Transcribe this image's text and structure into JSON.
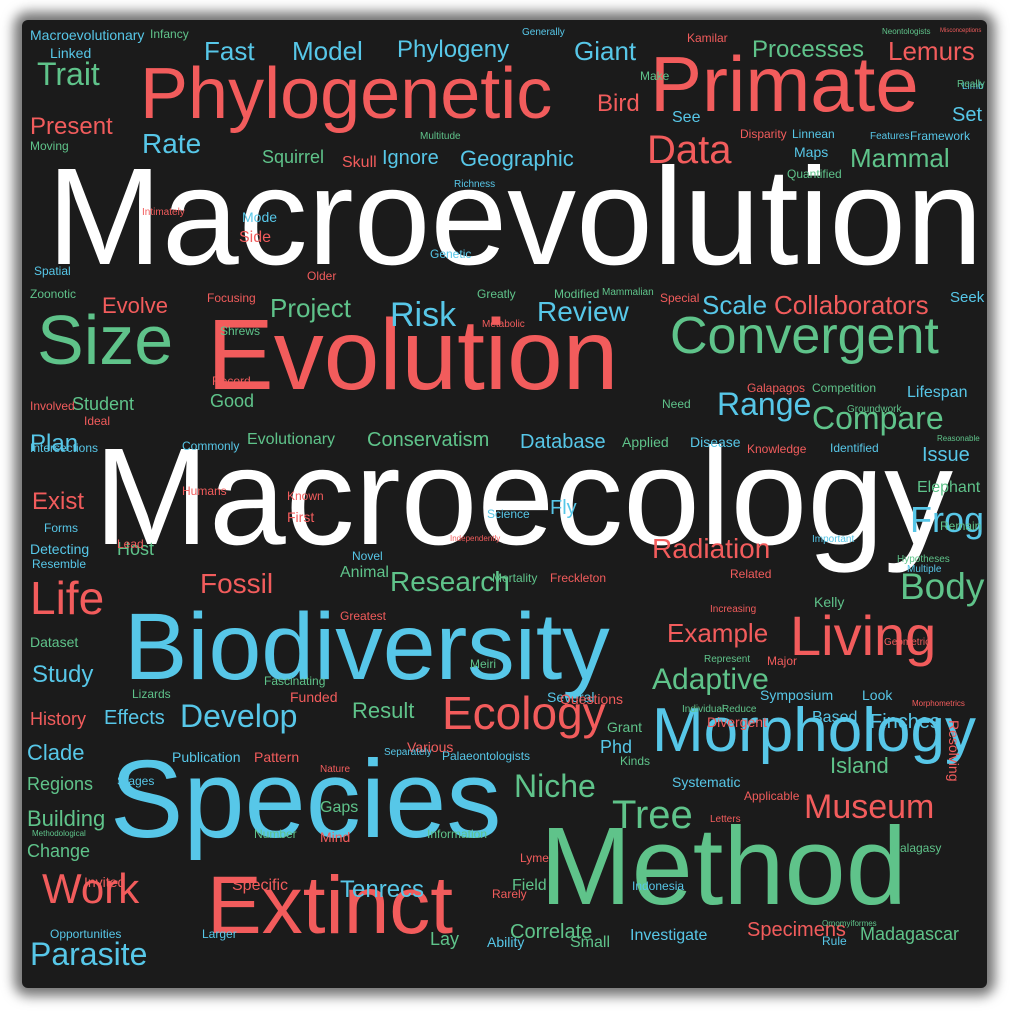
{
  "colors": {
    "background": "#1b1b1b",
    "red": "#f25c5c",
    "blue": "#57c7e8",
    "green": "#5fc38a",
    "white": "#ffffff"
  },
  "words": [
    {
      "t": "Macroevolution",
      "c": "white",
      "s": 138
    },
    {
      "t": "Macroecology",
      "c": "white",
      "s": 138
    },
    {
      "t": "Evolution",
      "c": "red",
      "s": 100
    },
    {
      "t": "Biodiversity",
      "c": "blue",
      "s": 95
    },
    {
      "t": "Species",
      "c": "blue",
      "s": 110
    },
    {
      "t": "Method",
      "c": "green",
      "s": 110
    },
    {
      "t": "Extinct",
      "c": "red",
      "s": 82
    },
    {
      "t": "Phylogenetic",
      "c": "red",
      "s": 72
    },
    {
      "t": "Primate",
      "c": "red",
      "s": 78
    },
    {
      "t": "Morphology",
      "c": "blue",
      "s": 62
    },
    {
      "t": "Size",
      "c": "green",
      "s": 70
    },
    {
      "t": "Convergent",
      "c": "green",
      "s": 52
    },
    {
      "t": "Living",
      "c": "red",
      "s": 56
    },
    {
      "t": "Ecology",
      "c": "red",
      "s": 46
    },
    {
      "t": "Life",
      "c": "red",
      "s": 46
    },
    {
      "t": "Work",
      "c": "red",
      "s": 42
    },
    {
      "t": "Museum",
      "c": "red",
      "s": 34
    },
    {
      "t": "Data",
      "c": "red",
      "s": 40
    },
    {
      "t": "Body",
      "c": "green",
      "s": 38
    },
    {
      "t": "Tree",
      "c": "green",
      "s": 40
    },
    {
      "t": "Frog",
      "c": "blue",
      "s": 36
    },
    {
      "t": "Parasite",
      "c": "blue",
      "s": 32
    },
    {
      "t": "Range",
      "c": "blue",
      "s": 32
    },
    {
      "t": "Compare",
      "c": "green",
      "s": 32
    },
    {
      "t": "Risk",
      "c": "blue",
      "s": 34
    },
    {
      "t": "Develop",
      "c": "blue",
      "s": 32
    },
    {
      "t": "Trait",
      "c": "green",
      "s": 32
    },
    {
      "t": "Rate",
      "c": "blue",
      "s": 28
    },
    {
      "t": "Niche",
      "c": "green",
      "s": 32
    },
    {
      "t": "Adaptive",
      "c": "green",
      "s": 30
    },
    {
      "t": "Radiation",
      "c": "red",
      "s": 28
    },
    {
      "t": "Research",
      "c": "green",
      "s": 28
    },
    {
      "t": "Fossil",
      "c": "red",
      "s": 28
    },
    {
      "t": "Review",
      "c": "blue",
      "s": 28
    },
    {
      "t": "Project",
      "c": "green",
      "s": 26
    },
    {
      "t": "Scale",
      "c": "blue",
      "s": 26
    },
    {
      "t": "Collaborators",
      "c": "red",
      "s": 26
    },
    {
      "t": "Example",
      "c": "red",
      "s": 26
    },
    {
      "t": "Model",
      "c": "blue",
      "s": 26
    },
    {
      "t": "Fast",
      "c": "blue",
      "s": 26
    },
    {
      "t": "Phylogeny",
      "c": "blue",
      "s": 24
    },
    {
      "t": "Giant",
      "c": "blue",
      "s": 26
    },
    {
      "t": "Processes",
      "c": "green",
      "s": 24
    },
    {
      "t": "Lemurs",
      "c": "red",
      "s": 26
    },
    {
      "t": "Bird",
      "c": "red",
      "s": 24
    },
    {
      "t": "Present",
      "c": "red",
      "s": 24
    },
    {
      "t": "Mammal",
      "c": "green",
      "s": 26
    },
    {
      "t": "Geographic",
      "c": "blue",
      "s": 22
    },
    {
      "t": "Evolve",
      "c": "red",
      "s": 22
    },
    {
      "t": "Plan",
      "c": "blue",
      "s": 24
    },
    {
      "t": "Exist",
      "c": "red",
      "s": 24
    },
    {
      "t": "Study",
      "c": "blue",
      "s": 24
    },
    {
      "t": "Result",
      "c": "green",
      "s": 22
    },
    {
      "t": "Effects",
      "c": "blue",
      "s": 20
    },
    {
      "t": "History",
      "c": "red",
      "s": 18
    },
    {
      "t": "Clade",
      "c": "blue",
      "s": 22
    },
    {
      "t": "Regions",
      "c": "green",
      "s": 18
    },
    {
      "t": "Building",
      "c": "green",
      "s": 22
    },
    {
      "t": "Change",
      "c": "green",
      "s": 18
    },
    {
      "t": "Tenrecs",
      "c": "blue",
      "s": 24
    },
    {
      "t": "Specimens",
      "c": "red",
      "s": 20
    },
    {
      "t": "Madagascar",
      "c": "green",
      "s": 18
    },
    {
      "t": "Correlate",
      "c": "green",
      "s": 20
    },
    {
      "t": "Investigate",
      "c": "blue",
      "s": 16
    },
    {
      "t": "Island",
      "c": "green",
      "s": 22
    },
    {
      "t": "Finches",
      "c": "blue",
      "s": 20
    },
    {
      "t": "Resolving",
      "c": "red",
      "s": 14
    },
    {
      "t": "Elephant",
      "c": "green",
      "s": 16
    },
    {
      "t": "Issue",
      "c": "blue",
      "s": 20
    },
    {
      "t": "Conservatism",
      "c": "green",
      "s": 20
    },
    {
      "t": "Database",
      "c": "blue",
      "s": 20
    },
    {
      "t": "Evolutionary",
      "c": "green",
      "s": 16
    },
    {
      "t": "Student",
      "c": "green",
      "s": 18
    },
    {
      "t": "Good",
      "c": "green",
      "s": 18
    },
    {
      "t": "Squirrel",
      "c": "green",
      "s": 18
    },
    {
      "t": "Ignore",
      "c": "blue",
      "s": 20
    },
    {
      "t": "Skull",
      "c": "red",
      "s": 16
    },
    {
      "t": "Side",
      "c": "red",
      "s": 16
    },
    {
      "t": "Mode",
      "c": "blue",
      "s": 14
    },
    {
      "t": "Lifespan",
      "c": "blue",
      "s": 16
    },
    {
      "t": "Seek",
      "c": "blue",
      "s": 16
    },
    {
      "t": "Limb",
      "c": "blue",
      "s": 14
    },
    {
      "t": "Set",
      "c": "blue",
      "s": 20
    },
    {
      "t": "See",
      "c": "blue",
      "s": 16
    },
    {
      "t": "Maps",
      "c": "blue",
      "s": 14
    },
    {
      "t": "Field",
      "c": "green",
      "s": 16
    },
    {
      "t": "Lay",
      "c": "green",
      "s": 18
    },
    {
      "t": "Ability",
      "c": "blue",
      "s": 14
    },
    {
      "t": "Small",
      "c": "green",
      "s": 16
    },
    {
      "t": "Phd",
      "c": "blue",
      "s": 18
    },
    {
      "t": "Grant",
      "c": "green",
      "s": 14
    },
    {
      "t": "Fly",
      "c": "blue",
      "s": 20
    },
    {
      "t": "Host",
      "c": "green",
      "s": 18
    },
    {
      "t": "Animal",
      "c": "green",
      "s": 16
    },
    {
      "t": "Gaps",
      "c": "green",
      "s": 16
    },
    {
      "t": "Specific",
      "c": "red",
      "s": 16
    },
    {
      "t": "Invited",
      "c": "red",
      "s": 14
    },
    {
      "t": "Dataset",
      "c": "green",
      "s": 14
    },
    {
      "t": "Publication",
      "c": "blue",
      "s": 14
    },
    {
      "t": "Pattern",
      "c": "red",
      "s": 14
    },
    {
      "t": "Various",
      "c": "red",
      "s": 14
    },
    {
      "t": "Based",
      "c": "blue",
      "s": 16
    },
    {
      "t": "Symposium",
      "c": "blue",
      "s": 14
    },
    {
      "t": "Look",
      "c": "blue",
      "s": 14
    },
    {
      "t": "Divergent",
      "c": "red",
      "s": 14
    },
    {
      "t": "Systematic",
      "c": "blue",
      "s": 14
    },
    {
      "t": "Kinds",
      "c": "green",
      "s": 12
    },
    {
      "t": "Applicable",
      "c": "red",
      "s": 12
    },
    {
      "t": "Applied",
      "c": "green",
      "s": 14
    },
    {
      "t": "Disease",
      "c": "blue",
      "s": 14
    },
    {
      "t": "Knowledge",
      "c": "red",
      "s": 12
    },
    {
      "t": "Identified",
      "c": "blue",
      "s": 12
    },
    {
      "t": "Mortality",
      "c": "green",
      "s": 12
    },
    {
      "t": "Freckleton",
      "c": "red",
      "s": 12
    },
    {
      "t": "Novel",
      "c": "blue",
      "s": 12
    },
    {
      "t": "Greatest",
      "c": "red",
      "s": 12
    },
    {
      "t": "Known",
      "c": "red",
      "s": 12
    },
    {
      "t": "First",
      "c": "red",
      "s": 14
    },
    {
      "t": "Lead",
      "c": "red",
      "s": 12
    },
    {
      "t": "Humans",
      "c": "red",
      "s": 12
    },
    {
      "t": "Commonly",
      "c": "blue",
      "s": 12
    },
    {
      "t": "Ideal",
      "c": "red",
      "s": 12
    },
    {
      "t": "Intersections",
      "c": "blue",
      "s": 12
    },
    {
      "t": "Forms",
      "c": "blue",
      "s": 12
    },
    {
      "t": "Detecting",
      "c": "blue",
      "s": 14
    },
    {
      "t": "Resemble",
      "c": "blue",
      "s": 12
    },
    {
      "t": "Involved",
      "c": "red",
      "s": 12
    },
    {
      "t": "Record",
      "c": "red",
      "s": 12
    },
    {
      "t": "Shrews",
      "c": "green",
      "s": 12
    },
    {
      "t": "Focusing",
      "c": "red",
      "s": 12
    },
    {
      "t": "Older",
      "c": "red",
      "s": 12
    },
    {
      "t": "Genetic",
      "c": "blue",
      "s": 12
    },
    {
      "t": "Greatly",
      "c": "green",
      "s": 12
    },
    {
      "t": "Modified",
      "c": "green",
      "s": 12
    },
    {
      "t": "Mammalian",
      "c": "green",
      "s": 10
    },
    {
      "t": "Special",
      "c": "red",
      "s": 12
    },
    {
      "t": "Metabolic",
      "c": "red",
      "s": 10
    },
    {
      "t": "Spatial",
      "c": "blue",
      "s": 12
    },
    {
      "t": "Zoonotic",
      "c": "green",
      "s": 12
    },
    {
      "t": "Intimately",
      "c": "red",
      "s": 10
    },
    {
      "t": "Moving",
      "c": "green",
      "s": 12
    },
    {
      "t": "Multitude",
      "c": "green",
      "s": 10
    },
    {
      "t": "Richness",
      "c": "blue",
      "s": 10
    },
    {
      "t": "Disparity",
      "c": "red",
      "s": 12
    },
    {
      "t": "Linnean",
      "c": "blue",
      "s": 12
    },
    {
      "t": "Features",
      "c": "blue",
      "s": 10
    },
    {
      "t": "Framework",
      "c": "blue",
      "s": 12
    },
    {
      "t": "Quantified",
      "c": "green",
      "s": 12
    },
    {
      "t": "Make",
      "c": "green",
      "s": 12
    },
    {
      "t": "Kamilar",
      "c": "red",
      "s": 12
    },
    {
      "t": "Generally",
      "c": "blue",
      "s": 10
    },
    {
      "t": "Neontologists",
      "c": "green",
      "s": 8
    },
    {
      "t": "Misconceptions",
      "c": "red",
      "s": 8
    },
    {
      "t": "Really",
      "c": "green",
      "s": 12
    },
    {
      "t": "Macroevolutionary",
      "c": "blue",
      "s": 14
    },
    {
      "t": "Infancy",
      "c": "green",
      "s": 12
    },
    {
      "t": "Linked",
      "c": "blue",
      "s": 14
    },
    {
      "t": "Galapagos",
      "c": "red",
      "s": 12
    },
    {
      "t": "Competition",
      "c": "green",
      "s": 12
    },
    {
      "t": "Groundwork",
      "c": "green",
      "s": 10
    },
    {
      "t": "Need",
      "c": "green",
      "s": 12
    },
    {
      "t": "Independently",
      "c": "red",
      "s": 8
    },
    {
      "t": "Reasonable",
      "c": "green",
      "s": 8
    },
    {
      "t": "Remain",
      "c": "green",
      "s": 12
    },
    {
      "t": "Important",
      "c": "blue",
      "s": 10
    },
    {
      "t": "Hypotheses",
      "c": "green",
      "s": 10
    },
    {
      "t": "Multiple",
      "c": "blue",
      "s": 10
    },
    {
      "t": "Related",
      "c": "red",
      "s": 12
    },
    {
      "t": "Increasing",
      "c": "red",
      "s": 10
    },
    {
      "t": "Kelly",
      "c": "green",
      "s": 14
    },
    {
      "t": "Geometric",
      "c": "red",
      "s": 10
    },
    {
      "t": "Represent",
      "c": "green",
      "s": 10
    },
    {
      "t": "Major",
      "c": "red",
      "s": 12
    },
    {
      "t": "Individual",
      "c": "green",
      "s": 10
    },
    {
      "t": "Reduce",
      "c": "green",
      "s": 10
    },
    {
      "t": "Morphometrics",
      "c": "red",
      "s": 8
    },
    {
      "t": "Letters",
      "c": "red",
      "s": 10
    },
    {
      "t": "Lyme",
      "c": "red",
      "s": 12
    },
    {
      "t": "Malagasy",
      "c": "green",
      "s": 12
    },
    {
      "t": "Rarely",
      "c": "red",
      "s": 12
    },
    {
      "t": "Indonesia",
      "c": "blue",
      "s": 12
    },
    {
      "t": "Rule",
      "c": "blue",
      "s": 12
    },
    {
      "t": "Ornomyiformes",
      "c": "green",
      "s": 8
    },
    {
      "t": "Science",
      "c": "blue",
      "s": 12
    },
    {
      "t": "Nature",
      "c": "red",
      "s": 10
    },
    {
      "t": "Separately",
      "c": "blue",
      "s": 10
    },
    {
      "t": "Palaeontologists",
      "c": "blue",
      "s": 12
    },
    {
      "t": "Several",
      "c": "blue",
      "s": 14
    },
    {
      "t": "Questions",
      "c": "red",
      "s": 14
    },
    {
      "t": "Meiri",
      "c": "green",
      "s": 12
    },
    {
      "t": "Funded",
      "c": "red",
      "s": 14
    },
    {
      "t": "Fascinating",
      "c": "green",
      "s": 12
    },
    {
      "t": "Lizards",
      "c": "green",
      "s": 12
    },
    {
      "t": "Stages",
      "c": "blue",
      "s": 12
    },
    {
      "t": "Number",
      "c": "green",
      "s": 12
    },
    {
      "t": "Mind",
      "c": "red",
      "s": 14
    },
    {
      "t": "Information",
      "c": "green",
      "s": 12
    },
    {
      "t": "Larger",
      "c": "blue",
      "s": 12
    },
    {
      "t": "Opportunities",
      "c": "blue",
      "s": 12
    },
    {
      "t": "Methodological",
      "c": "green",
      "s": 8
    }
  ]
}
